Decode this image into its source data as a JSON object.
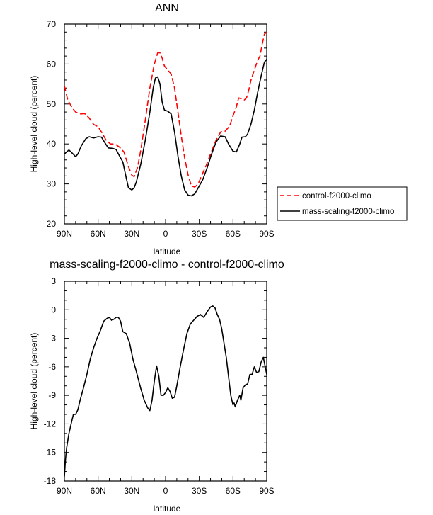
{
  "chart_data": [
    {
      "type": "line",
      "title": "ANN",
      "xlabel": "latitude",
      "ylabel": "High-level cloud (percent)",
      "xlim": [
        90,
        -90
      ],
      "ylim": [
        20,
        70
      ],
      "xticks": [
        90,
        60,
        30,
        0,
        -30,
        -60,
        -90
      ],
      "xtick_labels": [
        "90N",
        "60N",
        "30N",
        "0",
        "30S",
        "60S",
        "90S"
      ],
      "yticks": [
        20,
        30,
        40,
        50,
        60,
        70
      ],
      "ytick_labels": [
        "20",
        "30",
        "40",
        "50",
        "60",
        "70"
      ],
      "legend_position": "outside-right",
      "series": [
        {
          "name": "control-f2000-climo",
          "color": "#ff0000",
          "style": "dashed",
          "points": [
            [
              90,
              54.5
            ],
            [
              87,
              51
            ],
            [
              83,
              49
            ],
            [
              80,
              48
            ],
            [
              76,
              47.5
            ],
            [
              72,
              47.6
            ],
            [
              68,
              46.5
            ],
            [
              64,
              44.9
            ],
            [
              60,
              44.3
            ],
            [
              57,
              43
            ],
            [
              53,
              41
            ],
            [
              49,
              40
            ],
            [
              45,
              40
            ],
            [
              41,
              39.2
            ],
            [
              37,
              38
            ],
            [
              33,
              34.3
            ],
            [
              30,
              32.2
            ],
            [
              28,
              31.8
            ],
            [
              25,
              34
            ],
            [
              22,
              38.5
            ],
            [
              18,
              46
            ],
            [
              14,
              54
            ],
            [
              10,
              60
            ],
            [
              7,
              62.8
            ],
            [
              5,
              62.8
            ],
            [
              3,
              61.5
            ],
            [
              1,
              59.5
            ],
            [
              -2,
              58.5
            ],
            [
              -5,
              57.5
            ],
            [
              -8,
              54
            ],
            [
              -11,
              48
            ],
            [
              -14,
              42
            ],
            [
              -17,
              36.5
            ],
            [
              -20,
              32.3
            ],
            [
              -23,
              29.5
            ],
            [
              -26,
              29.2
            ],
            [
              -29,
              30
            ],
            [
              -32,
              32
            ],
            [
              -36,
              34.5
            ],
            [
              -40,
              37.5
            ],
            [
              -45,
              41
            ],
            [
              -49,
              43
            ],
            [
              -53,
              43.2
            ],
            [
              -57,
              44.5
            ],
            [
              -60,
              47
            ],
            [
              -63,
              49.3
            ],
            [
              -65,
              51.5
            ],
            [
              -68,
              51.3
            ],
            [
              -70,
              51
            ],
            [
              -72,
              51.5
            ],
            [
              -74,
              53.5
            ],
            [
              -76,
              56
            ],
            [
              -79,
              58.5
            ],
            [
              -82,
              61
            ],
            [
              -84,
              62
            ],
            [
              -86,
              65
            ],
            [
              -88,
              67.5
            ],
            [
              -90,
              68
            ]
          ]
        },
        {
          "name": "mass-scaling-f2000-climo",
          "color": "#000000",
          "style": "solid",
          "points": [
            [
              90,
              37.5
            ],
            [
              88,
              38
            ],
            [
              86,
              38.5
            ],
            [
              83,
              37.7
            ],
            [
              80,
              36.8
            ],
            [
              78,
              37.5
            ],
            [
              75,
              39.5
            ],
            [
              71,
              41.3
            ],
            [
              68,
              41.8
            ],
            [
              64,
              41.5
            ],
            [
              60,
              41.8
            ],
            [
              57,
              41.7
            ],
            [
              54,
              40.3
            ],
            [
              51,
              39
            ],
            [
              47,
              38.9
            ],
            [
              44,
              38.6
            ],
            [
              41,
              37
            ],
            [
              38,
              35.5
            ],
            [
              35,
              31.5
            ],
            [
              33,
              29
            ],
            [
              30,
              28.5
            ],
            [
              28,
              29
            ],
            [
              26,
              30.5
            ],
            [
              22,
              35
            ],
            [
              18,
              41
            ],
            [
              14,
              48
            ],
            [
              11,
              54
            ],
            [
              9,
              56.5
            ],
            [
              7,
              56.8
            ],
            [
              5,
              55
            ],
            [
              3,
              50.5
            ],
            [
              1,
              48.5
            ],
            [
              -2,
              48.2
            ],
            [
              -5,
              47.5
            ],
            [
              -8,
              43
            ],
            [
              -11,
              37
            ],
            [
              -14,
              32
            ],
            [
              -17,
              28.5
            ],
            [
              -20,
              27.2
            ],
            [
              -23,
              27
            ],
            [
              -26,
              27.5
            ],
            [
              -29,
              29
            ],
            [
              -33,
              31
            ],
            [
              -37,
              34
            ],
            [
              -41,
              37.5
            ],
            [
              -45,
              40.5
            ],
            [
              -49,
              42
            ],
            [
              -53,
              41.8
            ],
            [
              -56,
              40
            ],
            [
              -60,
              38.2
            ],
            [
              -63,
              38
            ],
            [
              -66,
              40
            ],
            [
              -68,
              41.7
            ],
            [
              -71,
              41.8
            ],
            [
              -73,
              42.5
            ],
            [
              -76,
              45
            ],
            [
              -79,
              48.5
            ],
            [
              -82,
              53
            ],
            [
              -85,
              57
            ],
            [
              -88,
              60.5
            ],
            [
              -90,
              61.2
            ]
          ]
        }
      ]
    },
    {
      "type": "line",
      "title": "mass-scaling-f2000-climo - control-f2000-climo",
      "xlabel": "latitude",
      "ylabel": "High-level cloud (percent)",
      "xlim": [
        90,
        -90
      ],
      "ylim": [
        -18,
        3
      ],
      "xticks": [
        90,
        60,
        30,
        0,
        -30,
        -60,
        -90
      ],
      "xtick_labels": [
        "90N",
        "60N",
        "30N",
        "0",
        "30S",
        "60S",
        "90S"
      ],
      "yticks": [
        -18,
        -15,
        -12,
        -9,
        -6,
        -3,
        0,
        3
      ],
      "ytick_labels": [
        "-18",
        "-15",
        "-12",
        "-9",
        "-6",
        "-3",
        "0",
        "3"
      ],
      "series": [
        {
          "color": "#000000",
          "style": "solid",
          "points": [
            [
              90,
              -17.5
            ],
            [
              89,
              -15.7
            ],
            [
              88,
              -14.5
            ],
            [
              86,
              -13
            ],
            [
              84,
              -12
            ],
            [
              82,
              -11
            ],
            [
              80,
              -11
            ],
            [
              78,
              -10.5
            ],
            [
              76,
              -9.5
            ],
            [
              73,
              -8.2
            ],
            [
              70,
              -6.8
            ],
            [
              67,
              -5.2
            ],
            [
              64,
              -4
            ],
            [
              61,
              -3
            ],
            [
              58,
              -2.2
            ],
            [
              55,
              -1.2
            ],
            [
              52,
              -0.9
            ],
            [
              50,
              -0.8
            ],
            [
              48,
              -1.1
            ],
            [
              46,
              -1
            ],
            [
              44,
              -0.8
            ],
            [
              42,
              -0.8
            ],
            [
              40,
              -1.2
            ],
            [
              38,
              -2.3
            ],
            [
              35,
              -2.5
            ],
            [
              32,
              -3.5
            ],
            [
              29,
              -5.2
            ],
            [
              26,
              -6.5
            ],
            [
              22,
              -8.3
            ],
            [
              19,
              -9.5
            ],
            [
              16,
              -10.3
            ],
            [
              14,
              -10.6
            ],
            [
              12,
              -9.5
            ],
            [
              10,
              -7.5
            ],
            [
              8,
              -5.9
            ],
            [
              6,
              -7
            ],
            [
              4,
              -9
            ],
            [
              2,
              -9
            ],
            [
              0,
              -8.7
            ],
            [
              -2,
              -8.2
            ],
            [
              -4,
              -8.6
            ],
            [
              -6,
              -9.3
            ],
            [
              -8,
              -9.2
            ],
            [
              -10,
              -8
            ],
            [
              -13,
              -6
            ],
            [
              -16,
              -4.2
            ],
            [
              -19,
              -2.5
            ],
            [
              -22,
              -1.5
            ],
            [
              -25,
              -1.1
            ],
            [
              -28,
              -0.7
            ],
            [
              -31,
              -0.5
            ],
            [
              -34,
              -0.8
            ],
            [
              -37,
              -0.2
            ],
            [
              -40,
              0.3
            ],
            [
              -42,
              0.4
            ],
            [
              -44,
              0.2
            ],
            [
              -46,
              -0.5
            ],
            [
              -48,
              -1
            ],
            [
              -50,
              -2
            ],
            [
              -52,
              -3.5
            ],
            [
              -54,
              -5
            ],
            [
              -56,
              -7
            ],
            [
              -58,
              -9
            ],
            [
              -60,
              -10
            ],
            [
              -61,
              -9.8
            ],
            [
              -62,
              -10.2
            ],
            [
              -64,
              -9.5
            ],
            [
              -66,
              -9
            ],
            [
              -67,
              -9.5
            ],
            [
              -69,
              -8.2
            ],
            [
              -71,
              -7.9
            ],
            [
              -73,
              -7.8
            ],
            [
              -75,
              -6.8
            ],
            [
              -77,
              -6.8
            ],
            [
              -79,
              -6
            ],
            [
              -81,
              -6.6
            ],
            [
              -83,
              -6.5
            ],
            [
              -85,
              -5.5
            ],
            [
              -87,
              -5
            ],
            [
              -89,
              -6.2
            ],
            [
              -90,
              -6.8
            ]
          ]
        }
      ]
    }
  ]
}
